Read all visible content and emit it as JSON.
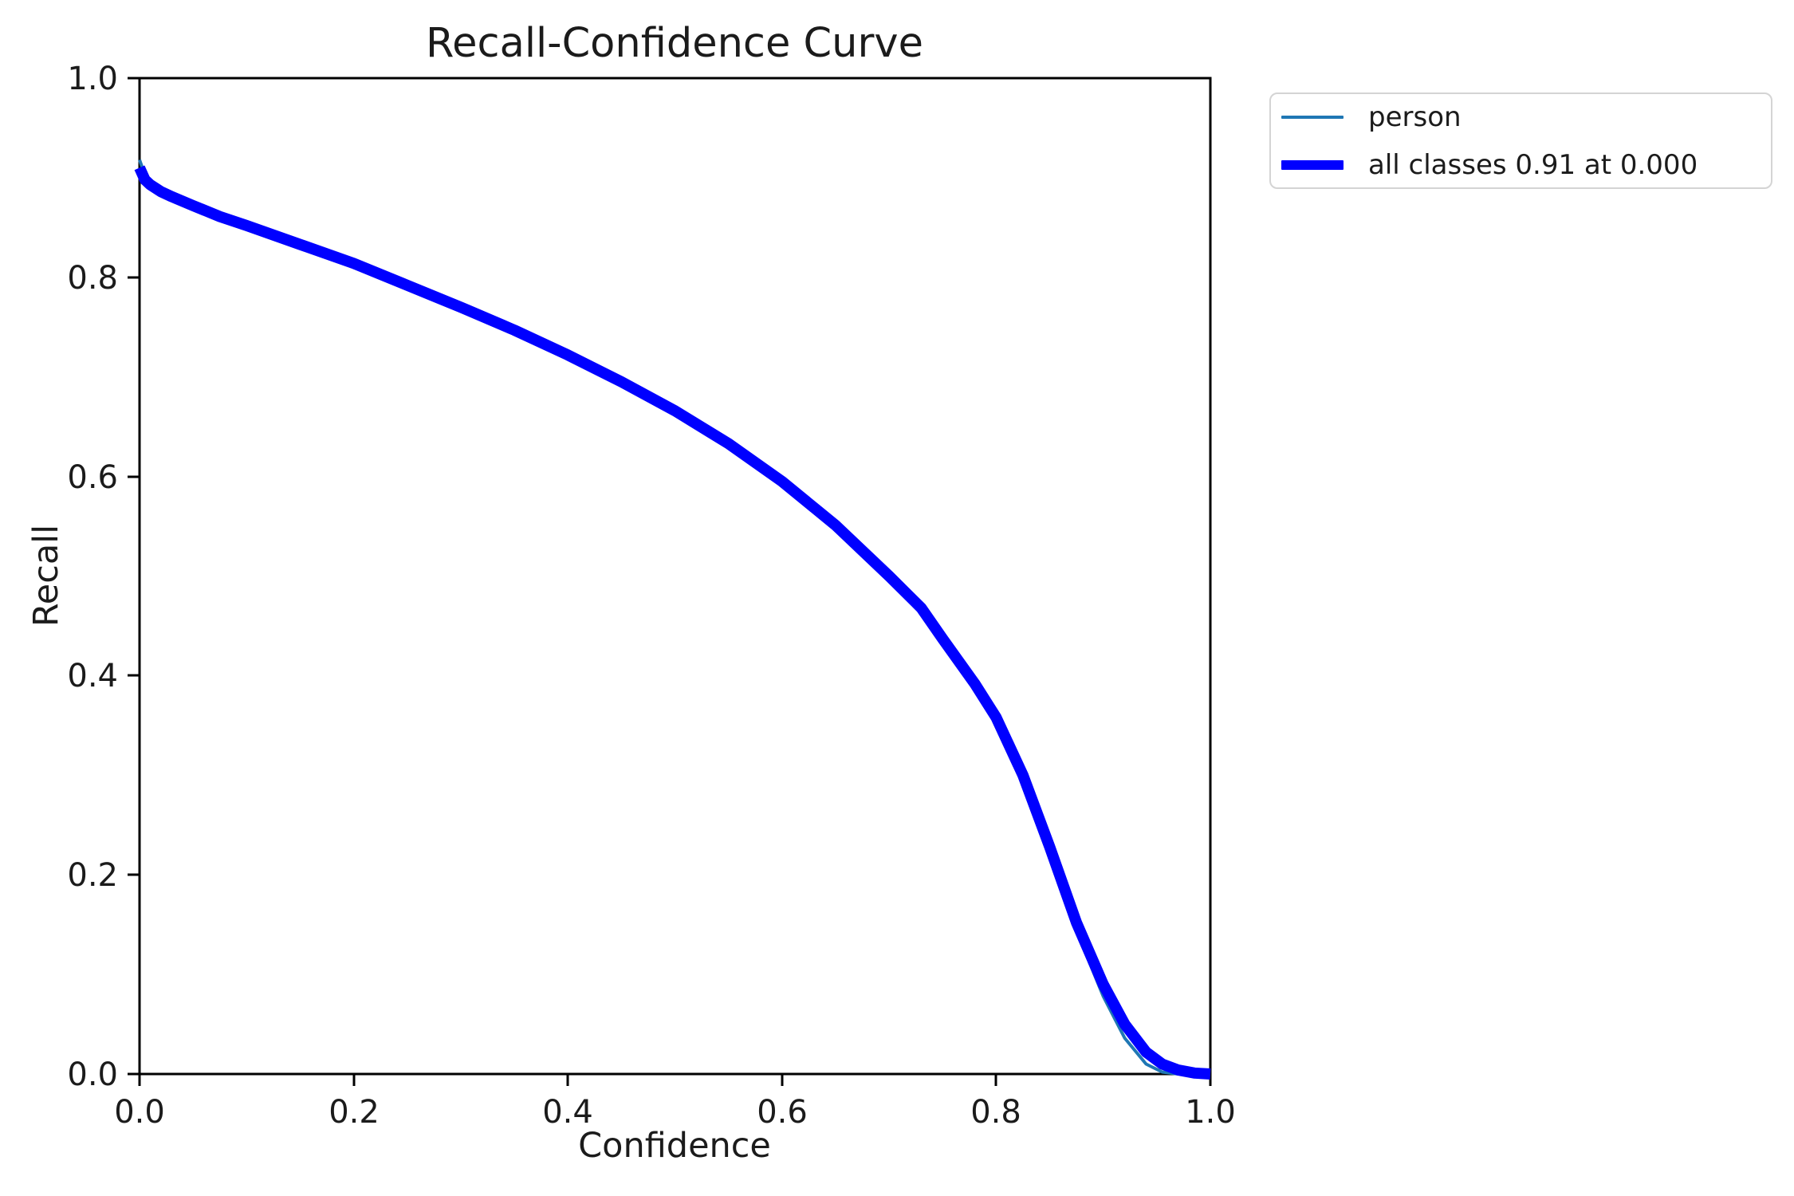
{
  "page": {
    "background": "#ffffff"
  },
  "chart_data": {
    "type": "line",
    "title": "Recall-Confidence Curve",
    "xlabel": "Confidence",
    "ylabel": "Recall",
    "xlim": [
      0.0,
      1.0
    ],
    "ylim": [
      0.0,
      1.0
    ],
    "grid": false,
    "legend_position": "upper-right-outside",
    "xtick_labels": [
      "0.0",
      "0.2",
      "0.4",
      "0.6",
      "0.8",
      "1.0"
    ],
    "ytick_labels": [
      "0.0",
      "0.2",
      "0.4",
      "0.6",
      "0.8",
      "1.0"
    ],
    "series": [
      {
        "name": "person",
        "color": "#1f77b4",
        "line_width": 4,
        "x": [
          0.0,
          0.005,
          0.01,
          0.02,
          0.03,
          0.05,
          0.075,
          0.1,
          0.15,
          0.2,
          0.25,
          0.3,
          0.35,
          0.4,
          0.45,
          0.5,
          0.55,
          0.6,
          0.65,
          0.7,
          0.73,
          0.75,
          0.78,
          0.8,
          0.825,
          0.85,
          0.875,
          0.9,
          0.92,
          0.94,
          0.955,
          0.97,
          0.985,
          1.0
        ],
        "y": [
          0.918,
          0.903,
          0.896,
          0.888,
          0.883,
          0.873,
          0.862,
          0.853,
          0.834,
          0.815,
          0.793,
          0.771,
          0.748,
          0.723,
          0.696,
          0.667,
          0.634,
          0.596,
          0.552,
          0.501,
          0.469,
          0.438,
          0.393,
          0.358,
          0.299,
          0.224,
          0.144,
          0.078,
          0.036,
          0.01,
          0.002,
          0.0,
          0.0,
          0.0
        ]
      },
      {
        "name": "all classes 0.91 at 0.000",
        "color": "#0000ff",
        "line_width": 14,
        "x": [
          0.0,
          0.005,
          0.01,
          0.02,
          0.03,
          0.05,
          0.075,
          0.1,
          0.15,
          0.2,
          0.25,
          0.3,
          0.35,
          0.4,
          0.45,
          0.5,
          0.55,
          0.6,
          0.65,
          0.7,
          0.73,
          0.75,
          0.78,
          0.8,
          0.825,
          0.85,
          0.875,
          0.9,
          0.92,
          0.94,
          0.955,
          0.97,
          0.985,
          1.0
        ],
        "y": [
          0.91,
          0.898,
          0.893,
          0.886,
          0.881,
          0.872,
          0.861,
          0.852,
          0.833,
          0.814,
          0.792,
          0.77,
          0.747,
          0.722,
          0.695,
          0.666,
          0.633,
          0.595,
          0.551,
          0.5,
          0.468,
          0.437,
          0.392,
          0.358,
          0.3,
          0.228,
          0.152,
          0.09,
          0.05,
          0.022,
          0.01,
          0.004,
          0.001,
          0.0
        ]
      }
    ],
    "legend": {
      "entries": [
        {
          "label": "person",
          "color": "#1f77b4",
          "swatch_height": 4
        },
        {
          "label": "all classes 0.91 at 0.000",
          "color": "#0000ff",
          "swatch_height": 12
        }
      ]
    }
  }
}
